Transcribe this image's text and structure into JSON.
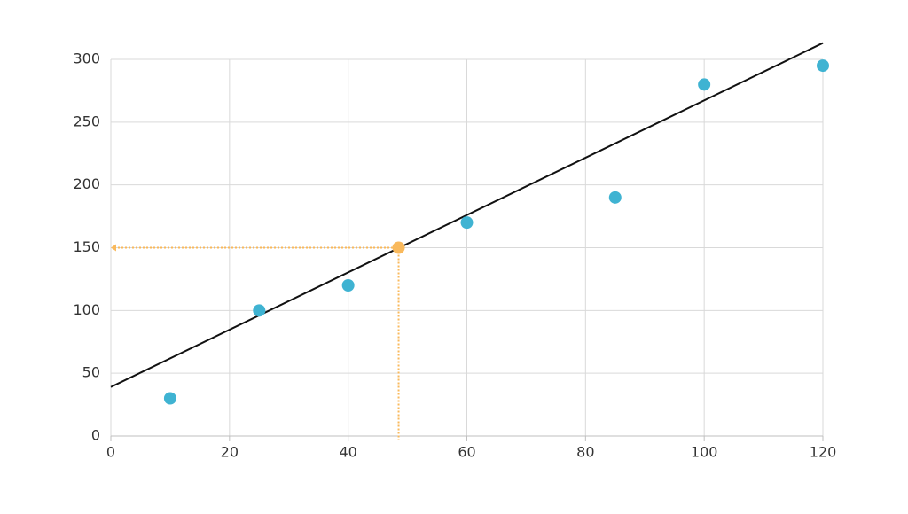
{
  "chart_data": {
    "type": "scatter",
    "xlim": [
      0,
      120
    ],
    "ylim": [
      0,
      300
    ],
    "xticks": [
      0,
      20,
      40,
      60,
      80,
      100,
      120
    ],
    "yticks": [
      0,
      50,
      100,
      150,
      200,
      250,
      300
    ],
    "grid": true,
    "series": [
      {
        "color": "#3fb3d2",
        "x": [
          10,
          25,
          40,
          60,
          85,
          100,
          120
        ],
        "values": [
          30,
          100,
          120,
          170,
          190,
          280,
          295
        ]
      }
    ],
    "trend_line": {
      "color": "#111111",
      "x": [
        0,
        120
      ],
      "values": [
        39,
        313
      ]
    },
    "highlight": {
      "color": "#f9b95c",
      "x": [
        48.5
      ],
      "values": [
        150
      ]
    }
  }
}
